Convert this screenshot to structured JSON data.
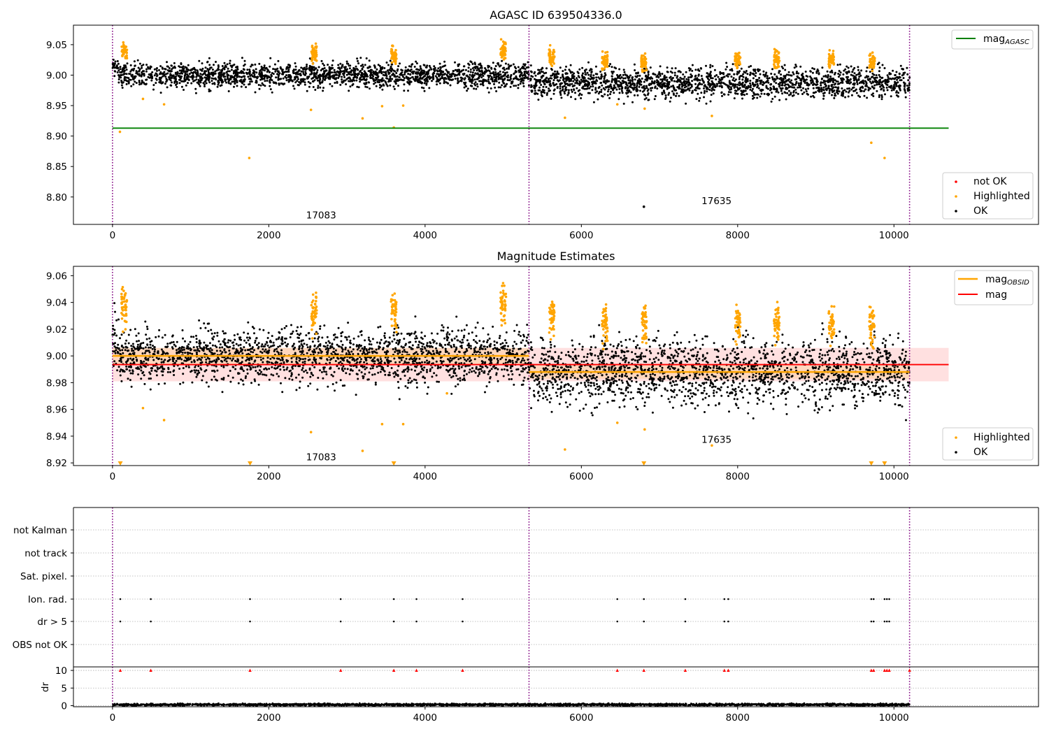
{
  "chart_data": [
    {
      "type": "scatter",
      "title": "AGASC ID 639504336.0",
      "xlabel": "",
      "ylabel": "",
      "xlim": [
        -500,
        11850
      ],
      "ylim": [
        8.755,
        9.082
      ],
      "x_ticks": [
        0,
        2000,
        4000,
        6000,
        8000,
        10000
      ],
      "y_ticks": [
        8.8,
        8.85,
        8.9,
        8.95,
        9.0,
        9.05
      ],
      "y_tick_labels": [
        "8.80",
        "8.85",
        "8.90",
        "8.95",
        "9.00",
        "9.05"
      ],
      "obsid_boundaries": [
        0,
        5330,
        10200
      ],
      "obsid_labels": [
        {
          "text": "17083",
          "x": 2670,
          "y": 8.765
        },
        {
          "text": "17635",
          "x": 7730,
          "y": 8.788
        }
      ],
      "reference_line": {
        "name": "mag_AGASC",
        "value": 8.913,
        "x_range": [
          0,
          10700
        ]
      },
      "legends": [
        {
          "entries": [
            "mag_AGASC"
          ],
          "placement": "top-right"
        },
        {
          "entries": [
            "not OK",
            "Highlighted",
            "OK"
          ],
          "placement": "bottom-right"
        }
      ],
      "series": [
        {
          "name": "OK",
          "color": "#000000",
          "segments": [
            {
              "x_range": [
                0,
                80
              ],
              "mean": 9.01,
              "spread": 0.01
            },
            {
              "x_range": [
                80,
                5330
              ],
              "mean": 9.0,
              "spread": 0.01
            },
            {
              "x_range": [
                5330,
                10200
              ],
              "mean": 8.988,
              "spread": 0.012
            }
          ]
        },
        {
          "name": "Highlighted",
          "color": "#ffa500",
          "clusters": [
            {
              "x": 150,
              "y": 9.038
            },
            {
              "x": 2580,
              "y": 9.033
            },
            {
              "x": 3600,
              "y": 9.033
            },
            {
              "x": 5000,
              "y": 9.04
            },
            {
              "x": 5620,
              "y": 9.03
            },
            {
              "x": 6300,
              "y": 9.023
            },
            {
              "x": 6800,
              "y": 9.022
            },
            {
              "x": 8000,
              "y": 9.025
            },
            {
              "x": 8500,
              "y": 9.025
            },
            {
              "x": 9200,
              "y": 9.025
            },
            {
              "x": 9720,
              "y": 9.022
            }
          ],
          "outliers": [
            {
              "x": 95,
              "y": 8.907
            },
            {
              "x": 390,
              "y": 8.961
            },
            {
              "x": 660,
              "y": 8.952
            },
            {
              "x": 1750,
              "y": 8.864
            },
            {
              "x": 2540,
              "y": 8.943
            },
            {
              "x": 3200,
              "y": 8.929
            },
            {
              "x": 3450,
              "y": 8.949
            },
            {
              "x": 3600,
              "y": 8.914
            },
            {
              "x": 3720,
              "y": 8.95
            },
            {
              "x": 5790,
              "y": 8.93
            },
            {
              "x": 6460,
              "y": 8.952
            },
            {
              "x": 6810,
              "y": 8.945
            },
            {
              "x": 7670,
              "y": 8.933
            },
            {
              "x": 9710,
              "y": 8.889
            },
            {
              "x": 9880,
              "y": 8.864
            }
          ]
        },
        {
          "name": "not OK",
          "color": "#ff0000",
          "points": []
        }
      ],
      "extra_points": [
        {
          "x": 6800,
          "y": 8.784,
          "color": "#000000"
        }
      ]
    },
    {
      "type": "scatter",
      "title": "Magnitude Estimates",
      "xlabel": "",
      "ylabel": "",
      "xlim": [
        -500,
        11850
      ],
      "ylim": [
        8.918,
        9.067
      ],
      "x_ticks": [
        0,
        2000,
        4000,
        6000,
        8000,
        10000
      ],
      "y_ticks": [
        8.92,
        8.94,
        8.96,
        8.98,
        9.0,
        9.02,
        9.04,
        9.06
      ],
      "y_tick_labels": [
        "8.92",
        "8.94",
        "8.96",
        "8.98",
        "9.00",
        "9.02",
        "9.04",
        "9.06"
      ],
      "obsid_boundaries": [
        0,
        5330,
        10200
      ],
      "obsid_labels": [
        {
          "text": "17083",
          "x": 2670,
          "y": 8.922
        },
        {
          "text": "17635",
          "x": 7730,
          "y": 8.935
        }
      ],
      "mag_line": {
        "name": "mag",
        "value": 8.9935,
        "band": [
          8.981,
          9.006
        ],
        "x_range": [
          0,
          10700
        ]
      },
      "mag_obsid": {
        "name": "mag_OBSID",
        "segments": [
          {
            "x_range": [
              0,
              5330
            ],
            "value": 9.0,
            "band": [
              8.994,
              9.006
            ]
          },
          {
            "x_range": [
              5330,
              10200
            ],
            "value": 8.988,
            "band": [
              8.983,
              8.993
            ]
          }
        ]
      },
      "clipped_markers_x": [
        100,
        1760,
        3600,
        6800,
        9710,
        9880
      ],
      "legends": [
        {
          "entries": [
            "mag_OBSID",
            "mag"
          ],
          "placement": "top-right"
        },
        {
          "entries": [
            "Highlighted",
            "OK"
          ],
          "placement": "bottom-right"
        }
      ],
      "series": [
        {
          "name": "OK",
          "color": "#000000",
          "segments": [
            {
              "x_range": [
                0,
                80
              ],
              "mean": 9.01,
              "spread": 0.01
            },
            {
              "x_range": [
                80,
                5330
              ],
              "mean": 9.0,
              "spread": 0.01
            },
            {
              "x_range": [
                5330,
                10200
              ],
              "mean": 8.988,
              "spread": 0.012
            }
          ]
        },
        {
          "name": "Highlighted",
          "color": "#ffa500",
          "clusters": [
            {
              "x": 150,
              "y": 9.038
            },
            {
              "x": 2580,
              "y": 9.033
            },
            {
              "x": 3600,
              "y": 9.033
            },
            {
              "x": 5000,
              "y": 9.04
            },
            {
              "x": 5620,
              "y": 9.03
            },
            {
              "x": 6300,
              "y": 9.023
            },
            {
              "x": 6800,
              "y": 9.022
            },
            {
              "x": 8000,
              "y": 9.025
            },
            {
              "x": 8500,
              "y": 9.025
            },
            {
              "x": 9200,
              "y": 9.025
            },
            {
              "x": 9720,
              "y": 9.022
            }
          ],
          "outliers": [
            {
              "x": 390,
              "y": 8.961
            },
            {
              "x": 660,
              "y": 8.952
            },
            {
              "x": 2540,
              "y": 8.943
            },
            {
              "x": 3200,
              "y": 8.929
            },
            {
              "x": 3450,
              "y": 8.949
            },
            {
              "x": 3720,
              "y": 8.949
            },
            {
              "x": 4280,
              "y": 8.972
            },
            {
              "x": 5790,
              "y": 8.93
            },
            {
              "x": 6460,
              "y": 8.95
            },
            {
              "x": 6810,
              "y": 8.945
            },
            {
              "x": 7670,
              "y": 8.933
            }
          ]
        }
      ]
    },
    {
      "type": "scatter",
      "title": "",
      "xlabel": "",
      "ylabel": "",
      "xlim": [
        -500,
        11850
      ],
      "flag_rows": [
        "not Kalman",
        "not track",
        "Sat. pixel.",
        "Ion. rad.",
        "dr > 5",
        "OBS not OK"
      ],
      "flag_points_x": [
        100,
        490,
        1760,
        2920,
        3600,
        3890,
        4480,
        6460,
        6800,
        7330,
        7830,
        7880,
        9710,
        9740,
        9880,
        9910,
        9940
      ],
      "flag_rows_marked": [
        "Ion. rad.",
        "dr > 5"
      ],
      "obsid_boundaries": [
        0,
        5330,
        10200
      ]
    },
    {
      "type": "scatter",
      "title": "",
      "xlabel": "",
      "ylabel": "dr",
      "xlim": [
        -500,
        11850
      ],
      "ylim": [
        -0.3,
        11
      ],
      "x_ticks": [
        0,
        2000,
        4000,
        6000,
        8000,
        10000
      ],
      "y_ticks": [
        0,
        5,
        10
      ],
      "dr_level": 0.3,
      "clipped_markers_x": [
        100,
        490,
        1760,
        2920,
        3600,
        3890,
        4480,
        6460,
        6800,
        7330,
        7830,
        7880,
        9710,
        9740,
        9880,
        9910,
        9940,
        10200
      ],
      "obsid_boundaries": [
        0,
        5330,
        10200
      ]
    }
  ],
  "legend_labels": {
    "mag_agasc_main": "mag",
    "mag_agasc_sub": "AGASC",
    "mag_obsid_main": "mag",
    "mag_obsid_sub": "OBSID",
    "mag": "mag",
    "not_ok": "not OK",
    "highlighted": "Highlighted",
    "ok": "OK"
  },
  "colors": {
    "ok": "#000000",
    "highlighted": "#ffa500",
    "not_ok": "#ff0000",
    "agasc_line": "#008000",
    "mag_line": "#ff0000",
    "obsid_line": "#ffa500",
    "obsid_boundary": "#800080"
  }
}
